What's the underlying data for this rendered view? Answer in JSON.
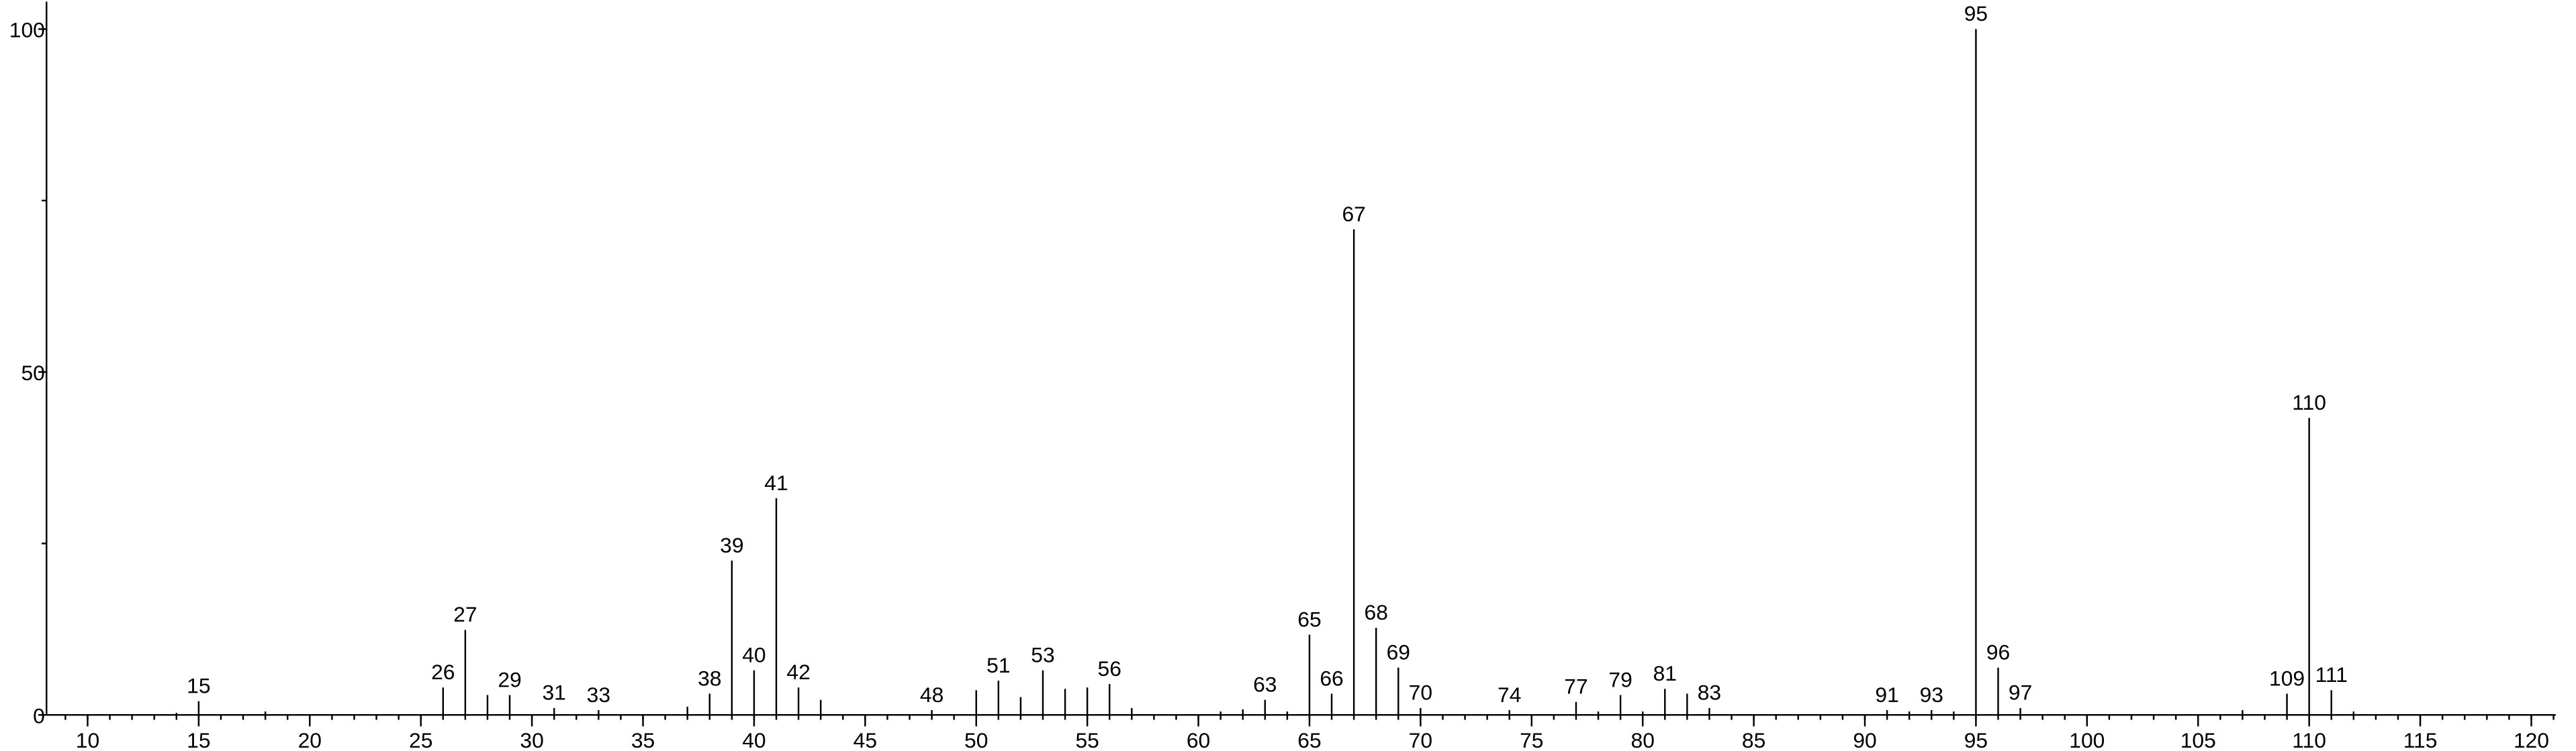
{
  "chart_data": {
    "type": "spectrum",
    "x": [
      14,
      15,
      18,
      26,
      27,
      28,
      29,
      31,
      33,
      37,
      38,
      39,
      40,
      41,
      42,
      43,
      48,
      50,
      51,
      52,
      53,
      54,
      55,
      56,
      57,
      61,
      62,
      63,
      64,
      65,
      66,
      67,
      68,
      69,
      70,
      74,
      77,
      78,
      79,
      80,
      81,
      82,
      83,
      91,
      92,
      93,
      94,
      95,
      96,
      97,
      107,
      109,
      110,
      111,
      112
    ],
    "values": [
      0.3,
      2,
      0.5,
      4,
      12.4,
      2.9,
      2.9,
      1,
      0.7,
      1.2,
      3.1,
      22.5,
      6.5,
      31.6,
      4,
      2.2,
      0.7,
      3.6,
      5,
      2.6,
      6.5,
      3.8,
      4,
      4.5,
      1,
      0.5,
      0.8,
      2.2,
      0.5,
      11.7,
      3.1,
      70.8,
      12.7,
      6.9,
      1,
      0.7,
      1.9,
      0.5,
      2.9,
      0.5,
      3.8,
      3.1,
      1,
      0.7,
      0.5,
      0.7,
      0.5,
      100,
      6.9,
      1,
      0.7,
      3.1,
      43.3,
      3.6,
      0.5
    ],
    "peak_labels": [
      null,
      "15",
      null,
      "26",
      "27",
      null,
      "29",
      "31",
      "33",
      null,
      "38",
      "39",
      "40",
      "41",
      "42",
      null,
      "48",
      null,
      "51",
      null,
      "53",
      null,
      null,
      "56",
      null,
      null,
      null,
      "63",
      null,
      "65",
      "66",
      "67",
      "68",
      "69",
      "70",
      "74",
      "77",
      null,
      "79",
      null,
      "81",
      null,
      "83",
      "91",
      null,
      "93",
      null,
      "95",
      "96",
      "97",
      null,
      "109",
      "110",
      "111",
      null
    ],
    "color": "#000000",
    "xlim": [
      8.15,
      121.1
    ],
    "ylim": [
      0,
      104
    ],
    "xticks": [
      10,
      15,
      20,
      25,
      30,
      35,
      40,
      45,
      50,
      55,
      60,
      65,
      70,
      75,
      80,
      85,
      90,
      95,
      100,
      105,
      110,
      115,
      120
    ],
    "yticks": [
      0,
      50,
      100
    ]
  }
}
